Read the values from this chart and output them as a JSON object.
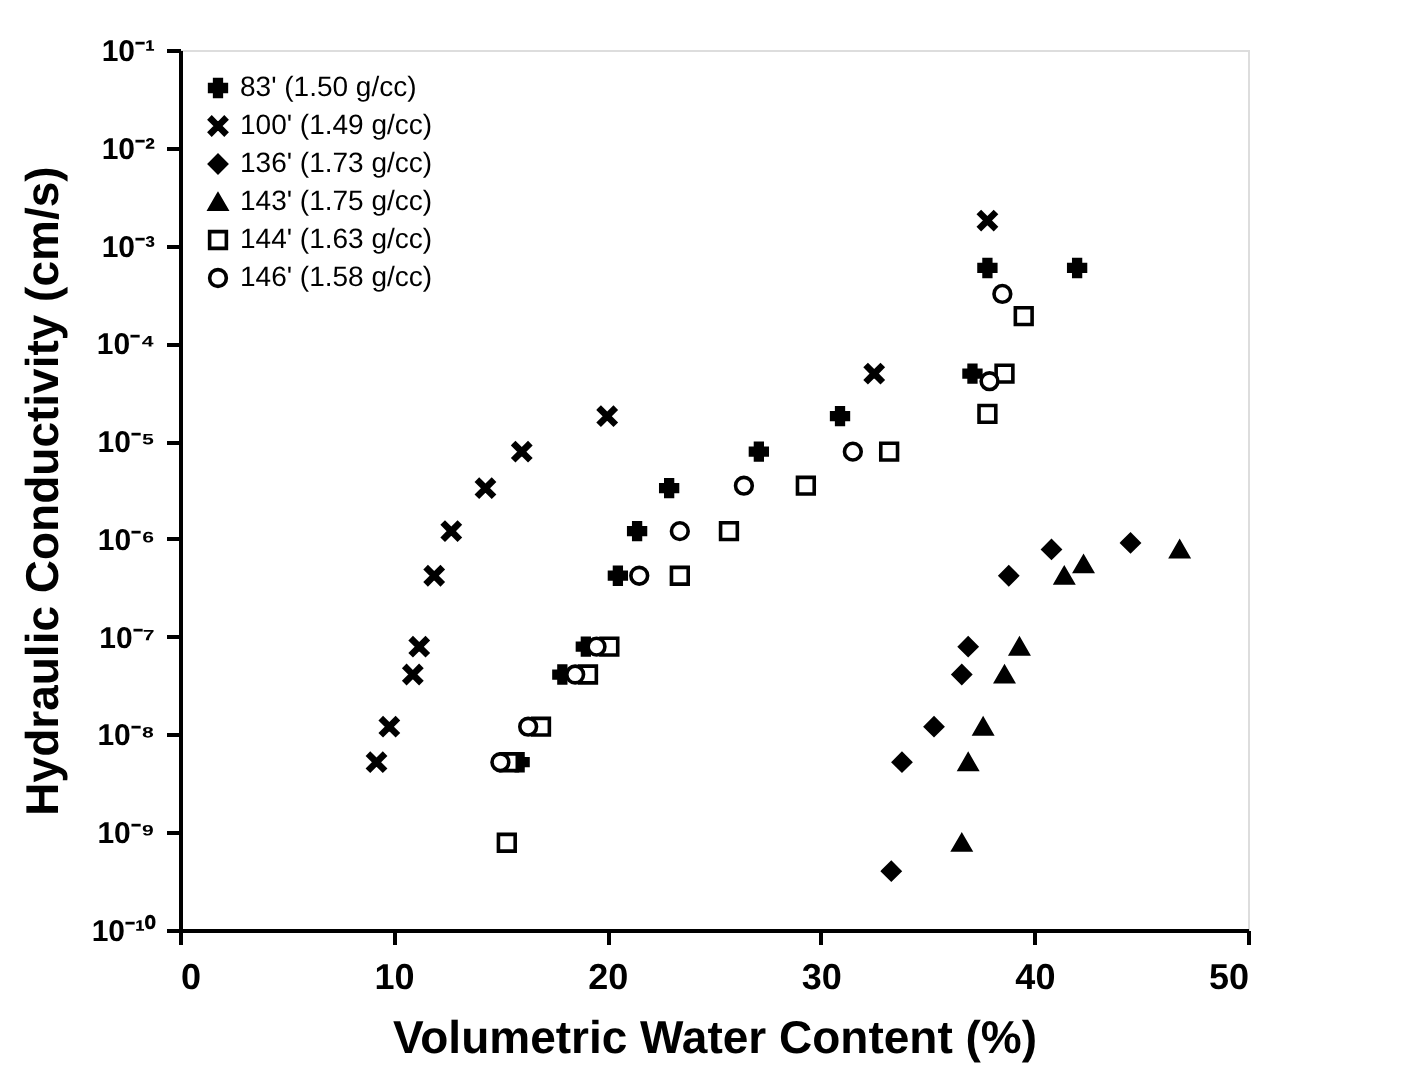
{
  "chart_data": {
    "type": "scatter",
    "xlabel": "Volumetric Water Content (%)",
    "ylabel": "Hydraulic Conductivity (cm/s)",
    "xlim": [
      0,
      50
    ],
    "xticks": [
      0,
      10,
      20,
      30,
      40,
      50
    ],
    "ylim": [
      1e-10,
      0.1
    ],
    "log": true,
    "yticks": [
      {
        "value": 1e-10,
        "label": "10⁻¹⁰"
      },
      {
        "value": 1e-09,
        "label": "10⁻⁹"
      },
      {
        "value": 1e-08,
        "label": "10⁻⁸"
      },
      {
        "value": 1e-07,
        "label": "10⁻⁷"
      },
      {
        "value": 1e-06,
        "label": "10⁻⁶"
      },
      {
        "value": 1e-05,
        "label": "10⁻⁵"
      },
      {
        "value": 0.0001,
        "label": "10⁻⁴"
      },
      {
        "value": 0.001,
        "label": "10⁻³"
      },
      {
        "value": 0.01,
        "label": "10⁻²"
      },
      {
        "value": 0.1,
        "label": "10⁻¹"
      }
    ],
    "grid": false,
    "legend": "top left",
    "series": [
      {
        "name": "83' (1.50 g/cc)",
        "color": "#000000",
        "marker": "cross",
        "x": [
          15.9,
          17.9,
          19.0,
          20.5,
          21.4,
          22.9,
          27.1,
          30.9,
          37.1,
          37.8,
          42.0
        ],
        "values": [
          5.2e-09,
          4.1e-08,
          7.9e-08,
          4.2e-07,
          1.2e-06,
          3.3e-06,
          7.8e-06,
          1.8e-05,
          4.9e-05,
          0.00059,
          0.00059
        ]
      },
      {
        "name": "100' (1.49 g/cc)",
        "color": "#000000",
        "marker": "x",
        "x": [
          9.2,
          9.8,
          10.9,
          11.2,
          11.9,
          12.7,
          14.3,
          16.0,
          20.0,
          32.5,
          37.8
        ],
        "values": [
          5.2e-09,
          1.2e-08,
          4.1e-08,
          7.9e-08,
          4.2e-07,
          1.2e-06,
          3.3e-06,
          7.8e-06,
          1.8e-05,
          4.9e-05,
          0.0018
        ]
      },
      {
        "name": "136' (1.73 g/cc)",
        "color": "#000000",
        "marker": "diamond",
        "x": [
          33.3,
          33.8,
          35.3,
          36.6,
          36.9,
          38.8,
          40.8,
          44.5
        ],
        "values": [
          4e-10,
          5.2e-09,
          1.2e-08,
          4.1e-08,
          7.9e-08,
          4.2e-07,
          7.8e-07,
          9.1e-07
        ]
      },
      {
        "name": "143' (1.75 g/cc)",
        "color": "#000000",
        "marker": "triangle",
        "x": [
          36.6,
          36.9,
          37.6,
          38.6,
          39.3,
          41.4,
          42.3,
          46.8
        ],
        "values": [
          7.8e-10,
          5.2e-09,
          1.2e-08,
          4.1e-08,
          7.9e-08,
          4.2e-07,
          5.5e-07,
          7.8e-07
        ]
      },
      {
        "name": "144' (1.63 g/cc)",
        "color": "#000000",
        "marker": "square",
        "x": [
          15.3,
          15.4,
          16.9,
          19.1,
          20.1,
          23.4,
          25.7,
          29.3,
          33.2,
          37.8,
          38.6,
          39.5
        ],
        "values": [
          7.8e-10,
          5.2e-09,
          1.2e-08,
          4.1e-08,
          7.9e-08,
          4.2e-07,
          1.2e-06,
          3.5e-06,
          7.8e-06,
          1.9e-05,
          4.9e-05,
          0.00019
        ]
      },
      {
        "name": "146' (1.58 g/cc)",
        "color": "#000000",
        "marker": "circle",
        "x": [
          15.0,
          16.3,
          18.5,
          19.5,
          21.5,
          23.4,
          26.4,
          31.5,
          37.9,
          38.5
        ],
        "values": [
          5.2e-09,
          1.2e-08,
          4.1e-08,
          7.9e-08,
          4.2e-07,
          1.2e-06,
          3.5e-06,
          7.8e-06,
          4.1e-05,
          0.00032
        ]
      }
    ]
  }
}
